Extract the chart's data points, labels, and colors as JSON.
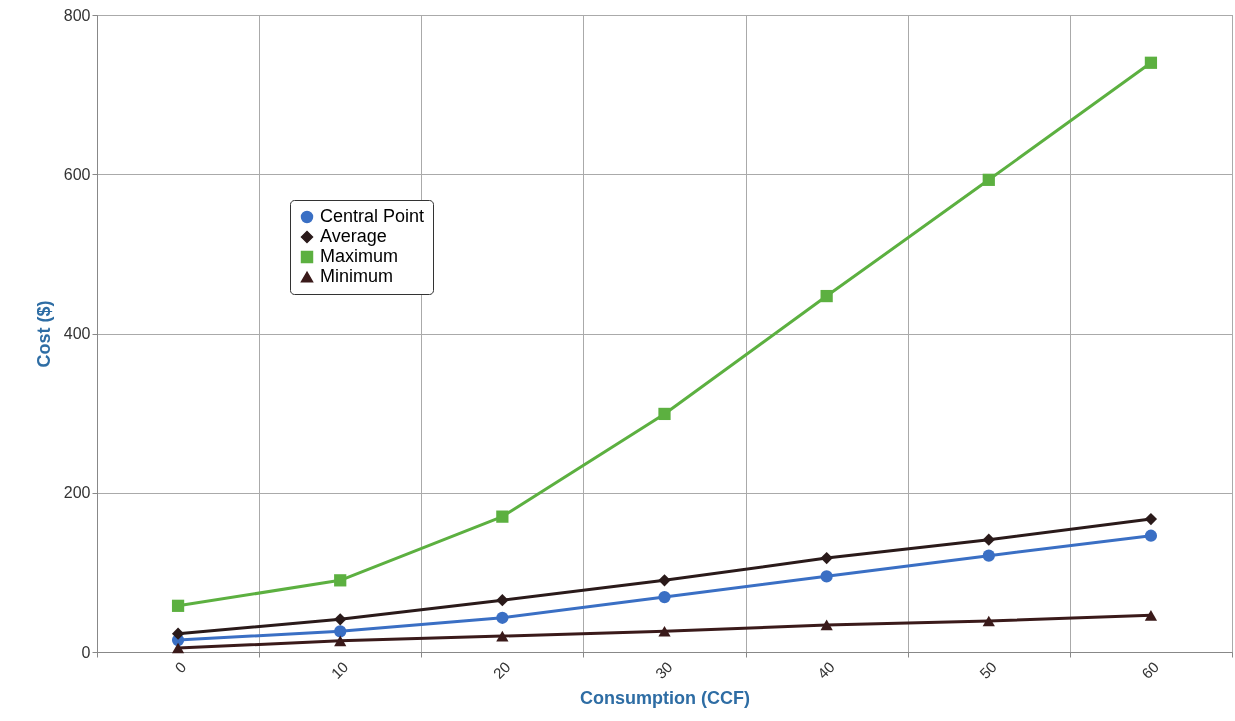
{
  "chart_data": {
    "type": "line",
    "xlabel": "Consumption (CCF)",
    "ylabel": "Cost ($)",
    "categories": [
      "0",
      "10",
      "20",
      "30",
      "40",
      "50",
      "60"
    ],
    "ylim": [
      0,
      800
    ],
    "yticks": [
      0,
      200,
      400,
      600,
      800
    ],
    "grid": true,
    "legend": "top left",
    "line_style": "solid",
    "series": [
      {
        "name": "Central Point",
        "color": "#3a6fc4",
        "marker": "circle",
        "values": [
          15,
          26,
          43,
          69,
          95,
          121,
          146
        ]
      },
      {
        "name": "Average",
        "color": "#2a1a1a",
        "marker": "diamond",
        "values": [
          23,
          41,
          65,
          90,
          118,
          141,
          167
        ]
      },
      {
        "name": "Maximum",
        "color": "#5cb040",
        "marker": "square",
        "values": [
          58,
          90,
          170,
          299,
          447,
          593,
          740
        ]
      },
      {
        "name": "Minimum",
        "color": "#3a1a1a",
        "marker": "triangle",
        "values": [
          5,
          14,
          20,
          26,
          34,
          39,
          46
        ]
      }
    ]
  }
}
